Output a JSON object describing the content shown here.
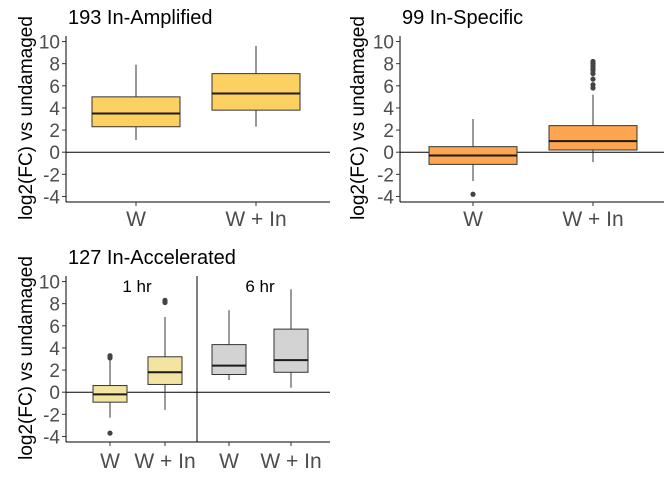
{
  "chart_data": [
    {
      "type": "box",
      "title": "193 In-Amplified",
      "ylabel": "log2(FC) vs undamaged",
      "ylim": [
        -4.5,
        10.5
      ],
      "yticks": [
        -4,
        -2,
        0,
        2,
        4,
        6,
        8,
        10
      ],
      "hline": 0,
      "categories": [
        "W",
        "W + In"
      ],
      "boxes": [
        {
          "category": "W",
          "whisker_low": 1.1,
          "q1": 2.3,
          "median": 3.5,
          "q3": 5.0,
          "whisker_high": 7.9,
          "outliers": [],
          "color": "#FDD161"
        },
        {
          "category": "W + In",
          "whisker_low": 2.3,
          "q1": 3.8,
          "median": 5.3,
          "q3": 7.1,
          "whisker_high": 9.6,
          "outliers": [],
          "color": "#FDD161"
        }
      ]
    },
    {
      "type": "box",
      "title": "99 In-Specific",
      "ylabel": "log2(FC) vs undamaged",
      "ylim": [
        -4.5,
        10.5
      ],
      "yticks": [
        -4,
        -2,
        0,
        2,
        4,
        6,
        8,
        10
      ],
      "hline": 0,
      "categories": [
        "W",
        "W + In"
      ],
      "boxes": [
        {
          "category": "W",
          "whisker_low": -2.6,
          "q1": -1.1,
          "median": -0.3,
          "q3": 0.5,
          "whisker_high": 3.0,
          "outliers": [
            -3.8
          ],
          "color": "#FDA54F"
        },
        {
          "category": "W + In",
          "whisker_low": -0.9,
          "q1": 0.2,
          "median": 1.0,
          "q3": 2.4,
          "whisker_high": 5.2,
          "outliers": [
            5.8,
            6.1,
            6.6,
            7.1,
            7.4,
            7.6,
            7.8,
            8.0,
            8.2
          ],
          "color": "#FDA54F"
        }
      ]
    },
    {
      "type": "box",
      "title": "127 In-Accelerated",
      "ylabel": "log2(FC) vs undamaged",
      "ylim": [
        -4.5,
        10.5
      ],
      "yticks": [
        -4,
        -2,
        0,
        2,
        4,
        6,
        8,
        10
      ],
      "hline": 0,
      "facets": [
        "1 hr",
        "6 hr"
      ],
      "categories": [
        "W",
        "W + In",
        "W",
        "W + In"
      ],
      "boxes": [
        {
          "facet": "1 hr",
          "category": "W",
          "whisker_low": -2.3,
          "q1": -0.9,
          "median": -0.2,
          "q3": 0.6,
          "whisker_high": 2.9,
          "outliers": [
            -3.7,
            3.1,
            3.3
          ],
          "color": "#F3E5A1"
        },
        {
          "facet": "1 hr",
          "category": "W + In",
          "whisker_low": -1.6,
          "q1": 0.7,
          "median": 1.8,
          "q3": 3.2,
          "whisker_high": 6.8,
          "outliers": [
            8.1,
            8.3
          ],
          "color": "#F3E5A1"
        },
        {
          "facet": "6 hr",
          "category": "W",
          "whisker_low": 1.1,
          "q1": 1.6,
          "median": 2.4,
          "q3": 4.3,
          "whisker_high": 7.4,
          "outliers": [],
          "color": "#D3D3D3"
        },
        {
          "facet": "6 hr",
          "category": "W + In",
          "whisker_low": 0.4,
          "q1": 1.8,
          "median": 2.9,
          "q3": 5.7,
          "whisker_high": 9.3,
          "outliers": [],
          "color": "#D3D3D3"
        }
      ]
    }
  ]
}
